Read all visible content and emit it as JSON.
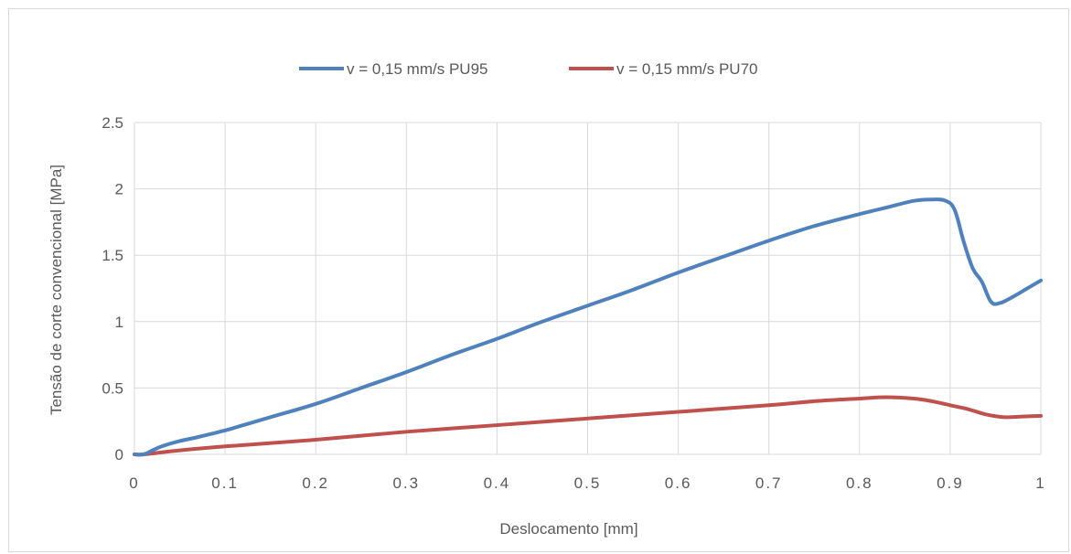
{
  "chart_data": {
    "type": "line",
    "title": "",
    "xlabel": "Deslocamento [mm]",
    "ylabel": "Tensão de corte convencional [MPa]",
    "xlim": [
      0,
      1
    ],
    "ylim": [
      0,
      2.5
    ],
    "x_ticks": [
      "0",
      "0.1",
      "0.2",
      "0.3",
      "0.4",
      "0.5",
      "0.6",
      "0.7",
      "0.8",
      "0.9",
      "1"
    ],
    "y_ticks": [
      "0",
      "0.5",
      "1",
      "1.5",
      "2",
      "2.5"
    ],
    "grid": true,
    "legend_position": "top",
    "series": [
      {
        "name": "v = 0,15 mm/s PU95",
        "color": "#4f81bd",
        "points": [
          [
            0,
            0
          ],
          [
            0.01,
            0.0
          ],
          [
            0.02,
            0.03
          ],
          [
            0.03,
            0.06
          ],
          [
            0.05,
            0.1
          ],
          [
            0.07,
            0.13
          ],
          [
            0.1,
            0.18
          ],
          [
            0.12,
            0.22
          ],
          [
            0.15,
            0.28
          ],
          [
            0.2,
            0.38
          ],
          [
            0.25,
            0.5
          ],
          [
            0.3,
            0.62
          ],
          [
            0.35,
            0.75
          ],
          [
            0.4,
            0.87
          ],
          [
            0.45,
            1.0
          ],
          [
            0.5,
            1.12
          ],
          [
            0.55,
            1.24
          ],
          [
            0.6,
            1.37
          ],
          [
            0.65,
            1.49
          ],
          [
            0.7,
            1.61
          ],
          [
            0.75,
            1.72
          ],
          [
            0.8,
            1.81
          ],
          [
            0.83,
            1.86
          ],
          [
            0.86,
            1.91
          ],
          [
            0.88,
            1.92
          ],
          [
            0.895,
            1.91
          ],
          [
            0.905,
            1.84
          ],
          [
            0.915,
            1.6
          ],
          [
            0.925,
            1.4
          ],
          [
            0.935,
            1.3
          ],
          [
            0.945,
            1.15
          ],
          [
            0.955,
            1.14
          ],
          [
            0.97,
            1.19
          ],
          [
            0.985,
            1.25
          ],
          [
            1.0,
            1.31
          ]
        ]
      },
      {
        "name": "v = 0,15 mm/s PU70",
        "color": "#c0504d",
        "points": [
          [
            0,
            0
          ],
          [
            0.01,
            0.0
          ],
          [
            0.05,
            0.03
          ],
          [
            0.1,
            0.06
          ],
          [
            0.2,
            0.11
          ],
          [
            0.3,
            0.17
          ],
          [
            0.4,
            0.22
          ],
          [
            0.5,
            0.27
          ],
          [
            0.6,
            0.32
          ],
          [
            0.7,
            0.37
          ],
          [
            0.75,
            0.4
          ],
          [
            0.8,
            0.42
          ],
          [
            0.83,
            0.43
          ],
          [
            0.86,
            0.42
          ],
          [
            0.88,
            0.4
          ],
          [
            0.9,
            0.37
          ],
          [
            0.92,
            0.34
          ],
          [
            0.94,
            0.3
          ],
          [
            0.96,
            0.28
          ],
          [
            0.98,
            0.285
          ],
          [
            1.0,
            0.29
          ]
        ]
      }
    ]
  }
}
